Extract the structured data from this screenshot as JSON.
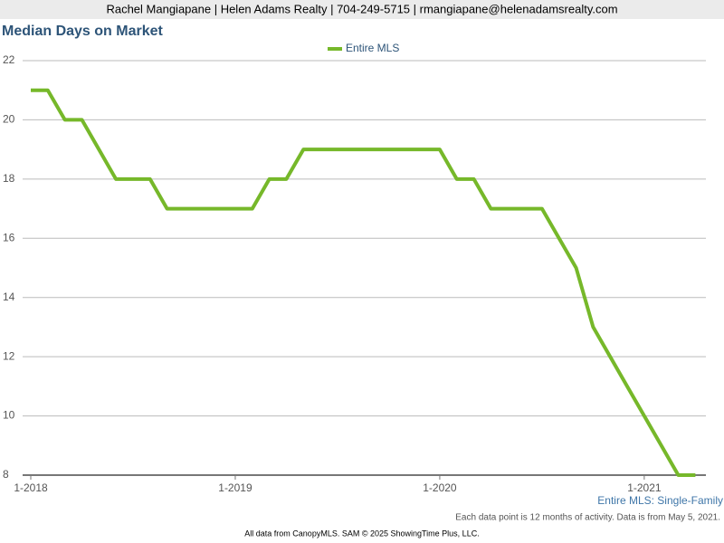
{
  "header": "Rachel Mangiapane | Helen Adams Realty | 704-249-5715 | rmangiapane@helenadamsrealty.com",
  "chart_data": {
    "type": "line",
    "title": "Median Days on Market",
    "categories": [
      "1-2018",
      null,
      null,
      null,
      null,
      null,
      null,
      null,
      null,
      null,
      null,
      null,
      "1-2019",
      null,
      null,
      null,
      null,
      null,
      null,
      null,
      null,
      null,
      null,
      null,
      "1-2020",
      null,
      null,
      null,
      null,
      null,
      null,
      null,
      null,
      null,
      null,
      null,
      "1-2021",
      null,
      null,
      null
    ],
    "series": [
      {
        "name": "Entire MLS",
        "color": "#76b82a",
        "values": [
          21,
          21,
          20,
          20,
          19,
          18,
          18,
          18,
          17,
          17,
          17,
          17,
          17,
          17,
          18,
          18,
          19,
          19,
          19,
          19,
          19,
          19,
          19,
          19,
          19,
          18,
          18,
          17,
          17,
          17,
          17,
          16,
          15,
          13,
          12,
          11,
          10,
          9,
          8,
          8
        ]
      }
    ],
    "ylim": [
      8,
      22
    ],
    "yticks": [
      8,
      10,
      12,
      14,
      16,
      18,
      20,
      22
    ],
    "grid": true,
    "subtitle": "Entire MLS: Single-Family",
    "note": "Each data point is 12 months of activity. Data is from May 5, 2021."
  },
  "footer": "All data from CanopyMLS. SAM © 2025 ShowingTime Plus, LLC."
}
